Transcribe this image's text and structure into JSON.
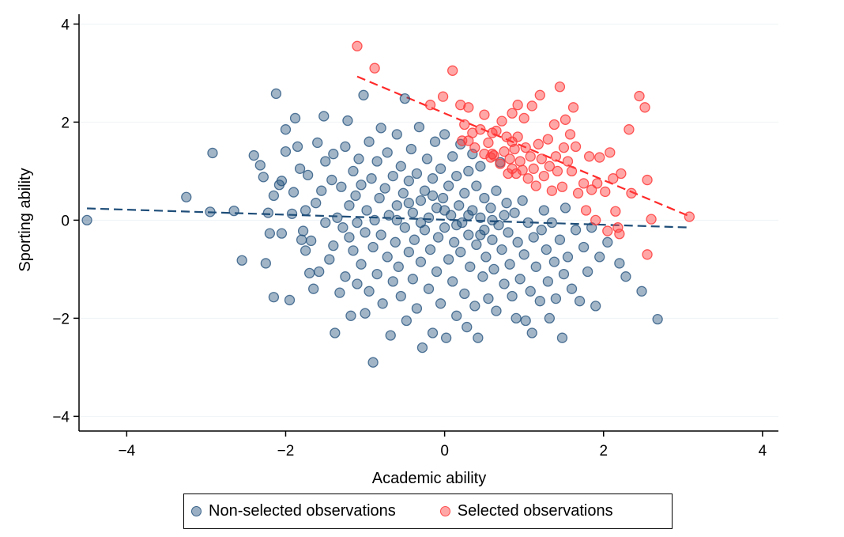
{
  "chart_data": {
    "type": "scatter",
    "title": "",
    "xlabel": "Academic ability",
    "ylabel": "Sporting ability",
    "xlim": [
      -4.6,
      4.2
    ],
    "ylim": [
      -4.3,
      4.2
    ],
    "xticks": [
      -4,
      -2,
      0,
      2,
      4
    ],
    "yticks": [
      -4,
      -2,
      0,
      2,
      4
    ],
    "xtick_labels": [
      "−4",
      "−2",
      "0",
      "2",
      "4"
    ],
    "ytick_labels": [
      "−4",
      "−2",
      "0",
      "2",
      "4"
    ],
    "grid": "horizontal",
    "legend_position": "bottom",
    "series": [
      {
        "name": "Non-selected observations",
        "color": "#1f4e79",
        "points": [
          [
            -4.5,
            0.0
          ],
          [
            -3.25,
            0.47
          ],
          [
            -2.95,
            0.17
          ],
          [
            -2.92,
            1.37
          ],
          [
            -2.65,
            0.19
          ],
          [
            -2.55,
            -0.82
          ],
          [
            -2.4,
            1.32
          ],
          [
            -2.32,
            1.12
          ],
          [
            -2.28,
            0.88
          ],
          [
            -2.25,
            -0.88
          ],
          [
            -2.22,
            0.15
          ],
          [
            -2.2,
            -0.27
          ],
          [
            -2.15,
            0.5
          ],
          [
            -2.15,
            -1.57
          ],
          [
            -2.12,
            2.58
          ],
          [
            -2.08,
            0.72
          ],
          [
            -2.05,
            -0.27
          ],
          [
            -2.05,
            0.8
          ],
          [
            -2.0,
            1.4
          ],
          [
            -2.0,
            1.85
          ],
          [
            -1.95,
            -1.63
          ],
          [
            -1.92,
            0.13
          ],
          [
            -1.9,
            0.57
          ],
          [
            -1.88,
            2.08
          ],
          [
            -1.85,
            1.5
          ],
          [
            -1.82,
            1.05
          ],
          [
            -1.8,
            -0.4
          ],
          [
            -1.78,
            -0.22
          ],
          [
            -1.75,
            -0.62
          ],
          [
            -1.75,
            0.2
          ],
          [
            -1.72,
            0.92
          ],
          [
            -1.7,
            -1.08
          ],
          [
            -1.68,
            -0.42
          ],
          [
            -1.65,
            -1.4
          ],
          [
            -1.62,
            0.35
          ],
          [
            -1.6,
            1.58
          ],
          [
            -1.58,
            -1.05
          ],
          [
            -1.55,
            0.6
          ],
          [
            -1.52,
            2.12
          ],
          [
            -1.5,
            -0.05
          ],
          [
            -1.5,
            1.2
          ],
          [
            -1.45,
            -0.8
          ],
          [
            -1.42,
            0.82
          ],
          [
            -1.4,
            -0.52
          ],
          [
            -1.4,
            1.35
          ],
          [
            -1.38,
            -2.3
          ],
          [
            -1.35,
            0.05
          ],
          [
            -1.32,
            -1.48
          ],
          [
            -1.3,
            0.68
          ],
          [
            -1.28,
            -0.15
          ],
          [
            -1.25,
            1.5
          ],
          [
            -1.25,
            -1.15
          ],
          [
            -1.22,
            2.03
          ],
          [
            -1.2,
            -0.35
          ],
          [
            -1.2,
            0.3
          ],
          [
            -1.18,
            -1.95
          ],
          [
            -1.15,
            1.0
          ],
          [
            -1.15,
            -0.62
          ],
          [
            -1.12,
            0.5
          ],
          [
            -1.1,
            -1.3
          ],
          [
            -1.1,
            -0.05
          ],
          [
            -1.08,
            1.25
          ],
          [
            -1.05,
            -0.9
          ],
          [
            -1.05,
            0.72
          ],
          [
            -1.02,
            2.55
          ],
          [
            -1.0,
            -0.25
          ],
          [
            -1.0,
            -1.9
          ],
          [
            -0.98,
            0.2
          ],
          [
            -0.95,
            -1.45
          ],
          [
            -0.95,
            1.6
          ],
          [
            -0.92,
            0.85
          ],
          [
            -0.9,
            -0.55
          ],
          [
            -0.9,
            -2.9
          ],
          [
            -0.88,
            0.0
          ],
          [
            -0.85,
            1.2
          ],
          [
            -0.85,
            -1.1
          ],
          [
            -0.82,
            0.45
          ],
          [
            -0.8,
            -0.3
          ],
          [
            -0.8,
            1.88
          ],
          [
            -0.78,
            -1.7
          ],
          [
            -0.75,
            0.65
          ],
          [
            -0.72,
            -0.75
          ],
          [
            -0.72,
            1.38
          ],
          [
            -0.7,
            0.1
          ],
          [
            -0.68,
            -2.35
          ],
          [
            -0.65,
            -1.25
          ],
          [
            -0.65,
            0.9
          ],
          [
            -0.62,
            -0.45
          ],
          [
            -0.6,
            1.75
          ],
          [
            -0.6,
            0.3
          ],
          [
            -0.58,
            -0.95
          ],
          [
            -0.55,
            1.1
          ],
          [
            -0.55,
            -1.55
          ],
          [
            -0.52,
            0.55
          ],
          [
            -0.5,
            -0.15
          ],
          [
            -0.5,
            2.48
          ],
          [
            -0.48,
            -2.05
          ],
          [
            -0.45,
            0.8
          ],
          [
            -0.45,
            -0.65
          ],
          [
            -0.42,
            1.45
          ],
          [
            -0.4,
            0.15
          ],
          [
            -0.4,
            -1.2
          ],
          [
            -0.38,
            -0.4
          ],
          [
            -0.35,
            0.95
          ],
          [
            -0.35,
            -1.8
          ],
          [
            -0.32,
            1.9
          ],
          [
            -0.3,
            0.4
          ],
          [
            -0.3,
            -0.85
          ],
          [
            -0.28,
            -2.6
          ],
          [
            -0.25,
            0.6
          ],
          [
            -0.25,
            -0.2
          ],
          [
            -0.22,
            1.25
          ],
          [
            -0.2,
            -1.4
          ],
          [
            -0.2,
            0.05
          ],
          [
            -0.18,
            -0.6
          ],
          [
            -0.15,
            0.85
          ],
          [
            -0.15,
            -2.3
          ],
          [
            -0.12,
            1.6
          ],
          [
            -0.1,
            0.25
          ],
          [
            -0.1,
            -1.05
          ],
          [
            -0.08,
            -0.35
          ],
          [
            -0.05,
            1.05
          ],
          [
            -0.05,
            -1.7
          ],
          [
            -0.02,
            0.45
          ],
          [
            0.0,
            -0.15
          ],
          [
            0.0,
            1.75
          ],
          [
            0.02,
            -2.4
          ],
          [
            0.05,
            0.7
          ],
          [
            0.05,
            -0.8
          ],
          [
            0.08,
            0.1
          ],
          [
            0.1,
            1.3
          ],
          [
            0.1,
            -1.25
          ],
          [
            0.12,
            -0.45
          ],
          [
            0.15,
            0.9
          ],
          [
            0.15,
            -1.95
          ],
          [
            0.18,
            0.3
          ],
          [
            0.2,
            -0.65
          ],
          [
            0.2,
            1.55
          ],
          [
            0.22,
            -0.05
          ],
          [
            0.25,
            -1.5
          ],
          [
            0.25,
            0.55
          ],
          [
            0.28,
            -2.18
          ],
          [
            0.3,
            1.0
          ],
          [
            0.3,
            -0.3
          ],
          [
            0.32,
            -0.95
          ],
          [
            0.35,
            0.2
          ],
          [
            0.35,
            1.35
          ],
          [
            0.38,
            -1.75
          ],
          [
            0.4,
            0.7
          ],
          [
            0.4,
            -0.5
          ],
          [
            0.42,
            -2.4
          ],
          [
            0.45,
            0.05
          ],
          [
            0.45,
            1.1
          ],
          [
            0.48,
            -1.15
          ],
          [
            0.5,
            -0.2
          ],
          [
            0.5,
            0.45
          ],
          [
            0.52,
            -0.75
          ],
          [
            0.55,
            -1.6
          ],
          [
            0.58,
            0.25
          ],
          [
            0.6,
            -0.4
          ],
          [
            0.62,
            -1.0
          ],
          [
            0.65,
            0.6
          ],
          [
            0.65,
            -1.85
          ],
          [
            0.68,
            -0.1
          ],
          [
            0.7,
            1.18
          ],
          [
            0.72,
            -0.6
          ],
          [
            0.75,
            -1.3
          ],
          [
            0.78,
            0.35
          ],
          [
            0.8,
            -0.25
          ],
          [
            0.82,
            -0.9
          ],
          [
            0.85,
            -1.55
          ],
          [
            0.88,
            0.15
          ],
          [
            0.9,
            -2.0
          ],
          [
            0.92,
            -0.45
          ],
          [
            0.95,
            -1.2
          ],
          [
            0.98,
            0.4
          ],
          [
            1.0,
            -0.7
          ],
          [
            1.02,
            -2.05
          ],
          [
            1.05,
            -0.05
          ],
          [
            1.08,
            -1.45
          ],
          [
            1.1,
            -2.3
          ],
          [
            1.12,
            -0.35
          ],
          [
            1.15,
            -0.95
          ],
          [
            1.2,
            -1.65
          ],
          [
            1.22,
            -0.2
          ],
          [
            1.25,
            0.2
          ],
          [
            1.28,
            -0.6
          ],
          [
            1.3,
            -1.25
          ],
          [
            1.32,
            -2.0
          ],
          [
            1.35,
            -0.05
          ],
          [
            1.38,
            -0.85
          ],
          [
            1.4,
            -1.6
          ],
          [
            1.45,
            -0.4
          ],
          [
            1.48,
            -2.4
          ],
          [
            1.5,
            -1.1
          ],
          [
            1.52,
            0.25
          ],
          [
            1.55,
            -0.75
          ],
          [
            1.6,
            -1.4
          ],
          [
            1.65,
            -0.2
          ],
          [
            1.7,
            -1.65
          ],
          [
            1.75,
            -0.55
          ],
          [
            1.8,
            -1.05
          ],
          [
            1.85,
            -0.15
          ],
          [
            1.9,
            -1.75
          ],
          [
            1.95,
            -0.75
          ],
          [
            2.05,
            -0.45
          ],
          [
            2.2,
            -0.88
          ],
          [
            2.28,
            -1.15
          ],
          [
            2.48,
            -1.45
          ],
          [
            2.68,
            -2.02
          ],
          [
            -0.6,
            0.0
          ],
          [
            -0.3,
            -0.05
          ],
          [
            0.0,
            0.2
          ],
          [
            0.3,
            0.1
          ],
          [
            0.6,
            0.0
          ],
          [
            -0.45,
            0.35
          ],
          [
            0.15,
            -0.1
          ],
          [
            0.45,
            -0.3
          ],
          [
            -0.15,
            0.5
          ],
          [
            0.75,
            0.1
          ]
        ]
      },
      {
        "name": "Selected observations",
        "color": "#ff3b3b",
        "points": [
          [
            -1.1,
            3.55
          ],
          [
            -0.88,
            3.1
          ],
          [
            -0.18,
            2.35
          ],
          [
            -0.02,
            2.52
          ],
          [
            0.1,
            3.05
          ],
          [
            0.2,
            2.35
          ],
          [
            0.22,
            1.62
          ],
          [
            0.25,
            1.95
          ],
          [
            0.3,
            1.62
          ],
          [
            0.3,
            2.3
          ],
          [
            0.35,
            1.78
          ],
          [
            0.38,
            1.48
          ],
          [
            0.45,
            1.85
          ],
          [
            0.5,
            1.35
          ],
          [
            0.5,
            2.15
          ],
          [
            0.55,
            1.58
          ],
          [
            0.58,
            1.28
          ],
          [
            0.6,
            1.78
          ],
          [
            0.62,
            1.32
          ],
          [
            0.65,
            1.82
          ],
          [
            0.7,
            1.15
          ],
          [
            0.72,
            2.02
          ],
          [
            0.75,
            1.4
          ],
          [
            0.78,
            1.7
          ],
          [
            0.8,
            0.95
          ],
          [
            0.82,
            1.25
          ],
          [
            0.85,
            2.18
          ],
          [
            0.85,
            1.05
          ],
          [
            0.88,
            1.45
          ],
          [
            0.9,
            0.95
          ],
          [
            0.92,
            2.35
          ],
          [
            0.92,
            1.7
          ],
          [
            0.95,
            1.2
          ],
          [
            0.98,
            1.02
          ],
          [
            1.0,
            2.08
          ],
          [
            1.02,
            1.48
          ],
          [
            1.05,
            0.85
          ],
          [
            1.08,
            1.3
          ],
          [
            1.1,
            2.33
          ],
          [
            1.12,
            1.05
          ],
          [
            1.15,
            0.7
          ],
          [
            1.18,
            1.55
          ],
          [
            1.2,
            2.55
          ],
          [
            1.22,
            1.25
          ],
          [
            1.25,
            0.9
          ],
          [
            1.3,
            1.65
          ],
          [
            1.32,
            1.1
          ],
          [
            1.35,
            0.6
          ],
          [
            1.38,
            1.95
          ],
          [
            1.4,
            1.3
          ],
          [
            1.42,
            1.0
          ],
          [
            1.45,
            2.72
          ],
          [
            1.48,
            0.68
          ],
          [
            1.5,
            1.48
          ],
          [
            1.52,
            2.05
          ],
          [
            1.55,
            1.2
          ],
          [
            1.58,
            1.75
          ],
          [
            1.6,
            1.0
          ],
          [
            1.62,
            2.3
          ],
          [
            1.65,
            1.5
          ],
          [
            1.68,
            0.55
          ],
          [
            1.75,
            0.75
          ],
          [
            1.78,
            0.2
          ],
          [
            1.82,
            1.3
          ],
          [
            1.85,
            0.62
          ],
          [
            1.9,
            0.0
          ],
          [
            1.92,
            0.75
          ],
          [
            1.95,
            1.28
          ],
          [
            2.02,
            0.58
          ],
          [
            2.05,
            -0.22
          ],
          [
            2.08,
            1.38
          ],
          [
            2.12,
            0.85
          ],
          [
            2.15,
            0.18
          ],
          [
            2.18,
            -0.15
          ],
          [
            2.2,
            -0.28
          ],
          [
            2.22,
            0.95
          ],
          [
            2.32,
            1.85
          ],
          [
            2.35,
            0.55
          ],
          [
            2.45,
            2.53
          ],
          [
            2.52,
            2.3
          ],
          [
            2.55,
            0.82
          ],
          [
            2.55,
            -0.7
          ],
          [
            2.6,
            0.02
          ],
          [
            3.08,
            0.07
          ],
          [
            0.6,
            1.35
          ],
          [
            0.85,
            1.6
          ]
        ]
      }
    ],
    "fit_lines": [
      {
        "series": "Non-selected observations",
        "color": "#1f4e79",
        "x": [
          -4.5,
          3.1
        ],
        "y": [
          0.24,
          -0.15
        ]
      },
      {
        "series": "Selected observations",
        "color": "#ff2a2a",
        "x": [
          -1.1,
          3.08
        ],
        "y": [
          2.93,
          0.08
        ]
      }
    ]
  }
}
